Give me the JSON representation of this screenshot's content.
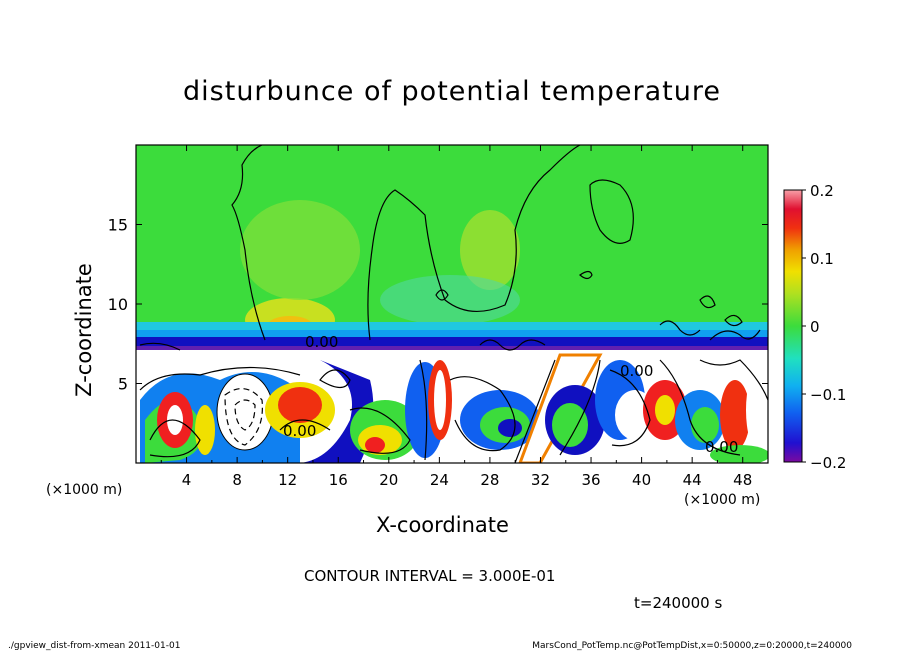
{
  "chart_data": {
    "type": "heatmap",
    "title": "disturbunce of potential temperature",
    "xlabel": "X-coordinate",
    "ylabel": "Z-coordinate",
    "x_unit": "(×1000 m)",
    "y_unit": "(×1000 m)",
    "xlim": [
      0,
      50
    ],
    "ylim": [
      0,
      20
    ],
    "x_ticks": [
      4,
      8,
      12,
      16,
      20,
      24,
      28,
      32,
      36,
      40,
      44,
      48
    ],
    "y_ticks": [
      5,
      10,
      15
    ],
    "colorbar": {
      "ticks": [
        "0.2",
        "0.1",
        "0",
        "−0.1",
        "−0.2"
      ],
      "tick_values": [
        0.2,
        0.1,
        0,
        -0.1,
        -0.2
      ],
      "range": [
        -0.2,
        0.2
      ]
    },
    "contour_labels": [
      "0.00",
      "0.00",
      "0.00",
      "0.00"
    ],
    "contour_interval": "CONTOUR INTERVAL = 3.000E-01",
    "time": "t=240000 s"
  },
  "footer": {
    "left": "./gpview_dist-from-xmean   2011-01-01",
    "right": "MarsCond_PotTemp.nc@PotTempDist,x=0:50000,z=0:20000,t=240000"
  },
  "colors": {
    "background_field": "#3cdc3c",
    "layer_dark_blue": "#1010c0",
    "anomaly_red": "#f02020",
    "anomaly_yellow": "#f0e000"
  }
}
